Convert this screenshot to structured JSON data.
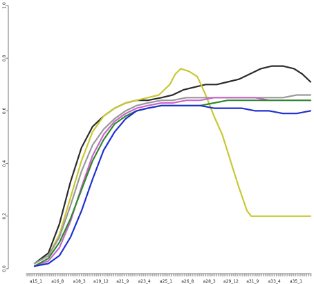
{
  "chart_data": {
    "type": "line",
    "title": "",
    "xlabel": "",
    "ylabel": "",
    "ylim": [
      0,
      1
    ],
    "grid": false,
    "y_ticks": [
      "0.0",
      "0.2",
      "0.4",
      "0.6",
      "0.8",
      "1.0"
    ],
    "x_tick_labels": [
      "a15_1",
      "a16_8",
      "a18_3",
      "a19_12",
      "a21_9",
      "a23_4",
      "a25_1",
      "a26_8",
      "a28_3",
      "a29_12",
      "a31_9",
      "a33_4",
      "a35_1"
    ],
    "x_range": [
      0,
      100
    ],
    "series": [
      {
        "color": "#2b2b2b",
        "x": [
          0,
          5,
          9,
          13,
          17,
          21,
          25,
          29,
          33,
          37,
          41,
          46,
          50,
          54,
          58,
          62,
          66,
          70,
          74,
          78,
          82,
          86,
          90,
          94,
          97,
          100
        ],
        "y": [
          0.02,
          0.06,
          0.17,
          0.33,
          0.46,
          0.54,
          0.58,
          0.61,
          0.63,
          0.64,
          0.64,
          0.65,
          0.66,
          0.68,
          0.69,
          0.7,
          0.7,
          0.71,
          0.72,
          0.74,
          0.76,
          0.77,
          0.77,
          0.76,
          0.74,
          0.71
        ]
      },
      {
        "color": "#c8c832",
        "x": [
          0,
          5,
          9,
          13,
          17,
          21,
          25,
          29,
          33,
          37,
          41,
          45,
          49,
          51,
          53,
          56,
          59,
          62,
          65,
          68,
          71,
          74,
          77,
          78.5,
          82,
          86,
          90,
          94,
          97,
          100
        ],
        "y": [
          0.02,
          0.05,
          0.13,
          0.27,
          0.41,
          0.52,
          0.58,
          0.61,
          0.63,
          0.64,
          0.65,
          0.66,
          0.7,
          0.74,
          0.76,
          0.75,
          0.73,
          0.66,
          0.58,
          0.51,
          0.41,
          0.31,
          0.22,
          0.2,
          0.2,
          0.2,
          0.2,
          0.2,
          0.2,
          0.2
        ]
      },
      {
        "color": "#999999",
        "x": [
          0,
          5,
          9,
          13,
          17,
          21,
          25,
          29,
          33,
          37,
          41,
          46,
          50,
          55,
          60,
          65,
          70,
          75,
          80,
          85,
          90,
          95,
          100
        ],
        "y": [
          0.02,
          0.05,
          0.12,
          0.24,
          0.37,
          0.47,
          0.53,
          0.57,
          0.6,
          0.62,
          0.63,
          0.64,
          0.64,
          0.65,
          0.65,
          0.65,
          0.65,
          0.65,
          0.65,
          0.65,
          0.65,
          0.66,
          0.66
        ]
      },
      {
        "color": "#cc66cc",
        "x": [
          0,
          5,
          9,
          13,
          17,
          21,
          25,
          29,
          33,
          37,
          41,
          46,
          50,
          55,
          60,
          65,
          70,
          75,
          80,
          85,
          90,
          95,
          100
        ],
        "y": [
          0.01,
          0.03,
          0.08,
          0.18,
          0.31,
          0.43,
          0.51,
          0.56,
          0.59,
          0.61,
          0.62,
          0.63,
          0.63,
          0.64,
          0.64,
          0.65,
          0.65,
          0.65,
          0.65,
          0.64,
          0.64,
          0.64,
          0.64
        ]
      },
      {
        "color": "#2d8a2d",
        "x": [
          0,
          5,
          9,
          13,
          17,
          21,
          25,
          29,
          33,
          37,
          41,
          46,
          50,
          55,
          60,
          65,
          70,
          75,
          80,
          85,
          90,
          95,
          100
        ],
        "y": [
          0.01,
          0.04,
          0.1,
          0.19,
          0.3,
          0.41,
          0.49,
          0.55,
          0.58,
          0.6,
          0.61,
          0.62,
          0.62,
          0.62,
          0.62,
          0.63,
          0.64,
          0.64,
          0.64,
          0.64,
          0.64,
          0.64,
          0.64
        ]
      },
      {
        "color": "#1f2fd0",
        "x": [
          0,
          5,
          9,
          13,
          17,
          21,
          25,
          29,
          33,
          37,
          41,
          46,
          50,
          55,
          60,
          65,
          70,
          75,
          80,
          85,
          90,
          95,
          100
        ],
        "y": [
          0.01,
          0.02,
          0.05,
          0.12,
          0.22,
          0.34,
          0.45,
          0.52,
          0.57,
          0.6,
          0.61,
          0.62,
          0.62,
          0.62,
          0.62,
          0.61,
          0.61,
          0.61,
          0.6,
          0.6,
          0.59,
          0.59,
          0.6
        ]
      }
    ]
  }
}
